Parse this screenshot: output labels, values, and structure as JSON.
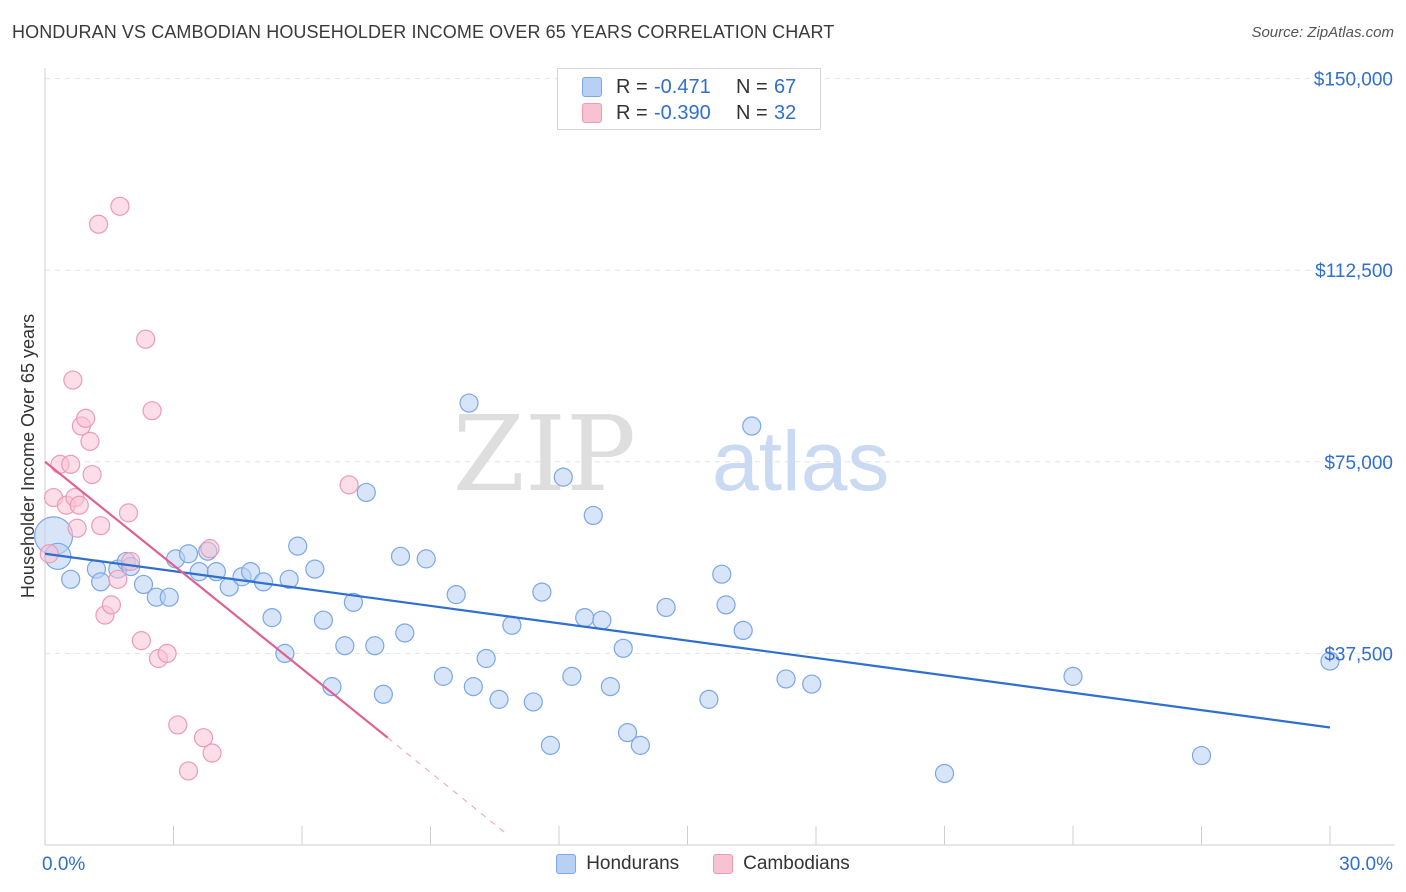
{
  "title": "HONDURAN VS CAMBODIAN HOUSEHOLDER INCOME OVER 65 YEARS CORRELATION CHART",
  "source": "Source: ZipAtlas.com",
  "watermark": {
    "zip": "ZIP",
    "atlas": "atlas"
  },
  "legend_top": [
    {
      "r_label": "R =",
      "r_value": "-0.471",
      "n_label": "N =",
      "n_value": "67",
      "color": "#7aa7e8"
    },
    {
      "r_label": "R =",
      "r_value": "-0.390",
      "n_label": "N =",
      "n_value": "32",
      "color": "#ef9ab5"
    }
  ],
  "legend_bottom": [
    {
      "label": "Hondurans",
      "color": "#7aa7e8"
    },
    {
      "label": "Cambodians",
      "color": "#ef9ab5"
    }
  ],
  "colors": {
    "blue_fill": "#b8d0f3",
    "blue_stroke": "#7aa7e8",
    "blue_line": "#2e6fcf",
    "pink_fill": "#f7c3d3",
    "pink_stroke": "#ef9ab5",
    "pink_line": "#e0608f",
    "axis_label": "#2e6fcf",
    "grid": "#e3e3e3"
  },
  "chart_data": {
    "type": "scatter",
    "title": "HONDURAN VS CAMBODIAN HOUSEHOLDER INCOME OVER 65 YEARS CORRELATION CHART",
    "xlabel": "",
    "ylabel": "Householder Income Over 65 years",
    "xlim": [
      0,
      30
    ],
    "ylim": [
      0,
      153000
    ],
    "x_tick_labels": [
      "0.0%",
      "30.0%"
    ],
    "y_ticks": [
      37500,
      75000,
      112500,
      150000
    ],
    "y_tick_labels": [
      "$37,500",
      "$75,000",
      "$112,500",
      "$150,000"
    ],
    "grid": true,
    "series": [
      {
        "name": "Hondurans",
        "r": -0.471,
        "n": 67,
        "trend": {
          "x": [
            0,
            30
          ],
          "y": [
            57000,
            23000
          ]
        },
        "points": [
          [
            0.2,
            60500,
            3
          ],
          [
            0.3,
            56500,
            2
          ],
          [
            0.6,
            52000,
            1
          ],
          [
            1.2,
            54000,
            1
          ],
          [
            1.3,
            51500,
            1
          ],
          [
            1.7,
            54000,
            1
          ],
          [
            1.9,
            55500,
            1
          ],
          [
            2.0,
            54500,
            1
          ],
          [
            2.3,
            51000,
            1
          ],
          [
            2.6,
            48500,
            1
          ],
          [
            2.9,
            48500,
            1
          ],
          [
            3.05,
            56000,
            1
          ],
          [
            3.35,
            57000,
            1
          ],
          [
            3.6,
            53500,
            1
          ],
          [
            3.8,
            57500,
            1
          ],
          [
            4.0,
            53500,
            1
          ],
          [
            4.3,
            50500,
            1
          ],
          [
            4.6,
            52500,
            1
          ],
          [
            4.8,
            53500,
            1
          ],
          [
            5.1,
            51500,
            1
          ],
          [
            5.3,
            44500,
            1
          ],
          [
            5.6,
            37500,
            1
          ],
          [
            5.7,
            52000,
            1
          ],
          [
            5.9,
            58500,
            1
          ],
          [
            6.3,
            54000,
            1
          ],
          [
            6.5,
            44000,
            1
          ],
          [
            6.7,
            31000,
            1
          ],
          [
            7.0,
            39000,
            1
          ],
          [
            7.2,
            47500,
            1
          ],
          [
            7.5,
            69000,
            1
          ],
          [
            7.7,
            39000,
            1
          ],
          [
            7.9,
            29500,
            1
          ],
          [
            8.3,
            56500,
            1
          ],
          [
            8.4,
            41500,
            1
          ],
          [
            8.9,
            56000,
            1
          ],
          [
            9.3,
            33000,
            1
          ],
          [
            9.6,
            49000,
            1
          ],
          [
            9.9,
            86500,
            1
          ],
          [
            10.0,
            31000,
            1
          ],
          [
            10.3,
            36500,
            1
          ],
          [
            10.6,
            28500,
            1
          ],
          [
            10.9,
            43000,
            1
          ],
          [
            11.4,
            28000,
            1
          ],
          [
            11.6,
            49500,
            1
          ],
          [
            11.8,
            19500,
            1
          ],
          [
            12.1,
            72000,
            1
          ],
          [
            12.3,
            33000,
            1
          ],
          [
            12.6,
            44500,
            1
          ],
          [
            12.8,
            64500,
            1
          ],
          [
            13.0,
            44000,
            1
          ],
          [
            13.2,
            31000,
            1
          ],
          [
            13.5,
            38500,
            1
          ],
          [
            13.6,
            22000,
            1
          ],
          [
            13.9,
            19500,
            1
          ],
          [
            14.5,
            46500,
            1
          ],
          [
            15.5,
            28500,
            1
          ],
          [
            15.8,
            53000,
            1
          ],
          [
            15.9,
            47000,
            1
          ],
          [
            16.3,
            42000,
            1
          ],
          [
            16.5,
            82000,
            1
          ],
          [
            17.3,
            32500,
            1
          ],
          [
            17.9,
            31500,
            1
          ],
          [
            21.0,
            14000,
            1
          ],
          [
            24.0,
            33000,
            1
          ],
          [
            27.0,
            17500,
            1
          ],
          [
            30.0,
            36000,
            1
          ]
        ]
      },
      {
        "name": "Cambodians",
        "r": -0.39,
        "n": 32,
        "trend": {
          "x": [
            0,
            8
          ],
          "y": [
            75000,
            21000
          ]
        },
        "trend_extension": {
          "x": [
            8,
            10.8
          ],
          "y": [
            21000,
            2000
          ]
        },
        "points": [
          [
            0.1,
            57000,
            1
          ],
          [
            0.2,
            68000,
            1
          ],
          [
            0.35,
            74500,
            1
          ],
          [
            0.5,
            66500,
            1
          ],
          [
            0.6,
            74500,
            1
          ],
          [
            0.65,
            91000,
            1
          ],
          [
            0.7,
            68000,
            1
          ],
          [
            0.8,
            66500,
            1
          ],
          [
            0.75,
            62000,
            1
          ],
          [
            0.85,
            82000,
            1
          ],
          [
            0.95,
            83500,
            1
          ],
          [
            1.05,
            79000,
            1
          ],
          [
            1.1,
            72500,
            1
          ],
          [
            1.25,
            121500,
            1
          ],
          [
            1.3,
            62500,
            1
          ],
          [
            1.4,
            45000,
            1
          ],
          [
            1.55,
            47000,
            1
          ],
          [
            1.7,
            52000,
            1
          ],
          [
            1.75,
            125000,
            1
          ],
          [
            1.95,
            65000,
            1
          ],
          [
            2.0,
            55500,
            1
          ],
          [
            2.25,
            40000,
            1
          ],
          [
            2.35,
            99000,
            1
          ],
          [
            2.5,
            85000,
            1
          ],
          [
            2.65,
            36500,
            1
          ],
          [
            2.85,
            37500,
            1
          ],
          [
            3.1,
            23500,
            1
          ],
          [
            3.35,
            14500,
            1
          ],
          [
            3.7,
            21000,
            1
          ],
          [
            3.85,
            58000,
            1
          ],
          [
            3.9,
            18000,
            1
          ],
          [
            7.1,
            70500,
            1
          ]
        ]
      }
    ]
  }
}
